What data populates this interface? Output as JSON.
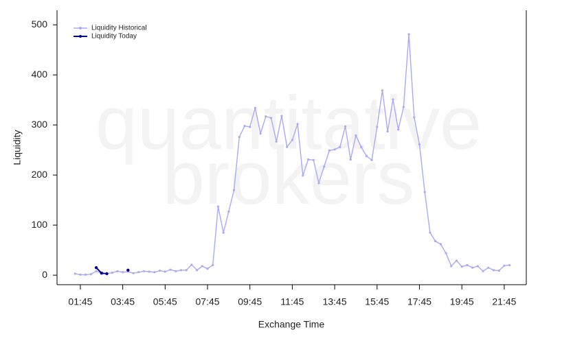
{
  "chart_data": {
    "type": "line",
    "watermark": [
      "quantitative",
      "brokers"
    ],
    "xlabel": "Exchange Time",
    "ylabel": "Liquidity",
    "xlim": [
      0.65,
      22.79
    ],
    "ylim": [
      -19,
      529
    ],
    "xticks": [
      {
        "value": 1.75,
        "label": "01:45"
      },
      {
        "value": 3.75,
        "label": "03:45"
      },
      {
        "value": 5.75,
        "label": "05:45"
      },
      {
        "value": 7.75,
        "label": "07:45"
      },
      {
        "value": 9.75,
        "label": "09:45"
      },
      {
        "value": 11.75,
        "label": "11:45"
      },
      {
        "value": 13.75,
        "label": "13:45"
      },
      {
        "value": 15.75,
        "label": "15:45"
      },
      {
        "value": 17.75,
        "label": "17:45"
      },
      {
        "value": 19.75,
        "label": "19:45"
      },
      {
        "value": 21.75,
        "label": "21:45"
      }
    ],
    "yticks": [
      0,
      100,
      200,
      300,
      400,
      500
    ],
    "legend": "top-left",
    "series": [
      {
        "name": "Liquidity Historical",
        "color": "#a9a9f5",
        "x": [
          1.5,
          1.75,
          2,
          2.25,
          2.5,
          2.75,
          3,
          3.25,
          3.5,
          3.75,
          4,
          4.25,
          4.5,
          4.75,
          5,
          5.25,
          5.5,
          5.75,
          6,
          6.25,
          6.5,
          6.75,
          7,
          7.25,
          7.5,
          7.75,
          8,
          8.25,
          8.5,
          8.75,
          9,
          9.25,
          9.5,
          9.75,
          10,
          10.25,
          10.5,
          10.75,
          11,
          11.25,
          11.5,
          11.75,
          12,
          12.25,
          12.5,
          12.75,
          13,
          13.25,
          13.5,
          13.75,
          14,
          14.25,
          14.5,
          14.75,
          15,
          15.25,
          15.5,
          15.75,
          16,
          16.25,
          16.5,
          16.75,
          17,
          17.25,
          17.5,
          17.75,
          18,
          18.25,
          18.5,
          18.75,
          19,
          19.25,
          19.5,
          19.75,
          20,
          20.25,
          20.5,
          20.75,
          21,
          21.25,
          21.5,
          21.75,
          22
        ],
        "values": [
          3,
          1,
          1,
          2,
          8,
          4,
          3,
          5,
          8,
          6,
          7,
          4,
          6,
          8,
          7,
          6,
          9,
          7,
          11,
          8,
          10,
          10,
          21,
          10,
          18,
          13,
          20,
          137,
          85,
          127,
          170,
          276,
          298,
          296,
          334,
          283,
          317,
          314,
          267,
          318,
          256,
          270,
          302,
          199,
          231,
          230,
          184,
          217,
          249,
          251,
          256,
          297,
          231,
          279,
          256,
          238,
          230,
          296,
          369,
          287,
          351,
          291,
          336,
          481,
          315,
          261,
          166,
          85,
          68,
          62,
          44,
          18,
          29,
          17,
          20,
          15,
          18,
          8,
          15,
          10,
          9,
          19,
          20
        ]
      },
      {
        "name": "Liquidity Today",
        "color": "#00008b",
        "x": [
          2.5,
          2.75,
          3,
          3.25,
          3.5,
          3.75,
          4
        ],
        "values": [
          15,
          4,
          3,
          null,
          null,
          null,
          10
        ]
      }
    ]
  }
}
